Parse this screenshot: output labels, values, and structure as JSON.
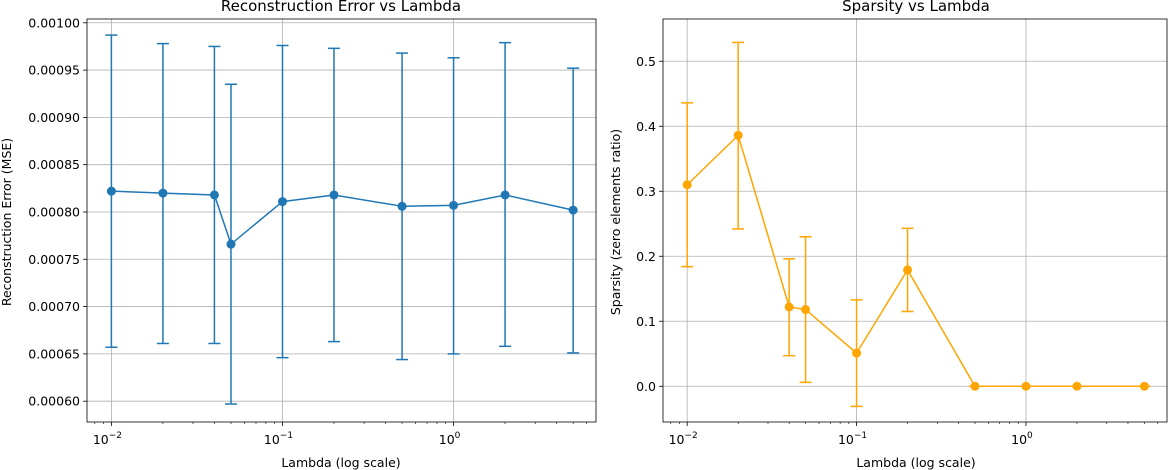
{
  "chart_data": [
    {
      "type": "line",
      "title": "Reconstruction Error vs Lambda",
      "xlabel": "Lambda (log scale)",
      "ylabel": "Reconstruction Error (MSE)",
      "xscale": "log",
      "xlim": [
        0.0072,
        6.8
      ],
      "ylim": [
        0.000578,
        0.001004
      ],
      "xticks": [
        {
          "value": 0.01,
          "base": "10",
          "exp": "−2"
        },
        {
          "value": 0.1,
          "base": "10",
          "exp": "−1"
        },
        {
          "value": 1,
          "base": "10",
          "exp": "0"
        }
      ],
      "yticks": [
        {
          "value": 0.0006,
          "label": "0.00060"
        },
        {
          "value": 0.00065,
          "label": "0.00065"
        },
        {
          "value": 0.0007,
          "label": "0.00070"
        },
        {
          "value": 0.00075,
          "label": "0.00075"
        },
        {
          "value": 0.0008,
          "label": "0.00080"
        },
        {
          "value": 0.00085,
          "label": "0.00085"
        },
        {
          "value": 0.0009,
          "label": "0.00090"
        },
        {
          "value": 0.00095,
          "label": "0.00095"
        },
        {
          "value": 0.001,
          "label": "0.00100"
        }
      ],
      "grid": true,
      "color": "#1f77b4",
      "series": [
        {
          "x": [
            0.01,
            0.02,
            0.04,
            0.05,
            0.1,
            0.2,
            0.5,
            1,
            2,
            5
          ],
          "y": [
            0.000822,
            0.00082,
            0.000818,
            0.000766,
            0.000811,
            0.000818,
            0.000806,
            0.000807,
            0.000818,
            0.000802
          ],
          "err_low": [
            0.000657,
            0.000661,
            0.000661,
            0.000597,
            0.000646,
            0.000663,
            0.000644,
            0.00065,
            0.000658,
            0.000651
          ],
          "err_high": [
            0.000987,
            0.000978,
            0.000975,
            0.000935,
            0.000976,
            0.000973,
            0.000968,
            0.000963,
            0.000979,
            0.000952
          ]
        }
      ]
    },
    {
      "type": "line",
      "title": "Sparsity vs Lambda",
      "xlabel": "Lambda (log scale)",
      "ylabel": "Sparsity (zero elements ratio)",
      "xscale": "log",
      "xlim": [
        0.0072,
        6.8
      ],
      "ylim": [
        -0.055,
        0.565
      ],
      "xticks": [
        {
          "value": 0.01,
          "base": "10",
          "exp": "−2"
        },
        {
          "value": 0.1,
          "base": "10",
          "exp": "−1"
        },
        {
          "value": 1,
          "base": "10",
          "exp": "0"
        }
      ],
      "yticks": [
        {
          "value": 0,
          "label": "0.0"
        },
        {
          "value": 0.1,
          "label": "0.1"
        },
        {
          "value": 0.2,
          "label": "0.2"
        },
        {
          "value": 0.3,
          "label": "0.3"
        },
        {
          "value": 0.4,
          "label": "0.4"
        },
        {
          "value": 0.5,
          "label": "0.5"
        }
      ],
      "grid": true,
      "color": "#ffa500",
      "series": [
        {
          "x": [
            0.01,
            0.02,
            0.04,
            0.05,
            0.1,
            0.2,
            0.5,
            1,
            2,
            5
          ],
          "y": [
            0.31,
            0.386,
            0.122,
            0.118,
            0.051,
            0.179,
            0.0,
            0.0,
            0.0,
            0.0
          ],
          "err_low": [
            0.184,
            0.242,
            0.047,
            0.006,
            -0.031,
            0.115,
            0.0,
            0.0,
            0.0,
            0.0
          ],
          "err_high": [
            0.436,
            0.529,
            0.196,
            0.23,
            0.133,
            0.243,
            0.0,
            0.0,
            0.0,
            0.0
          ]
        }
      ]
    }
  ]
}
